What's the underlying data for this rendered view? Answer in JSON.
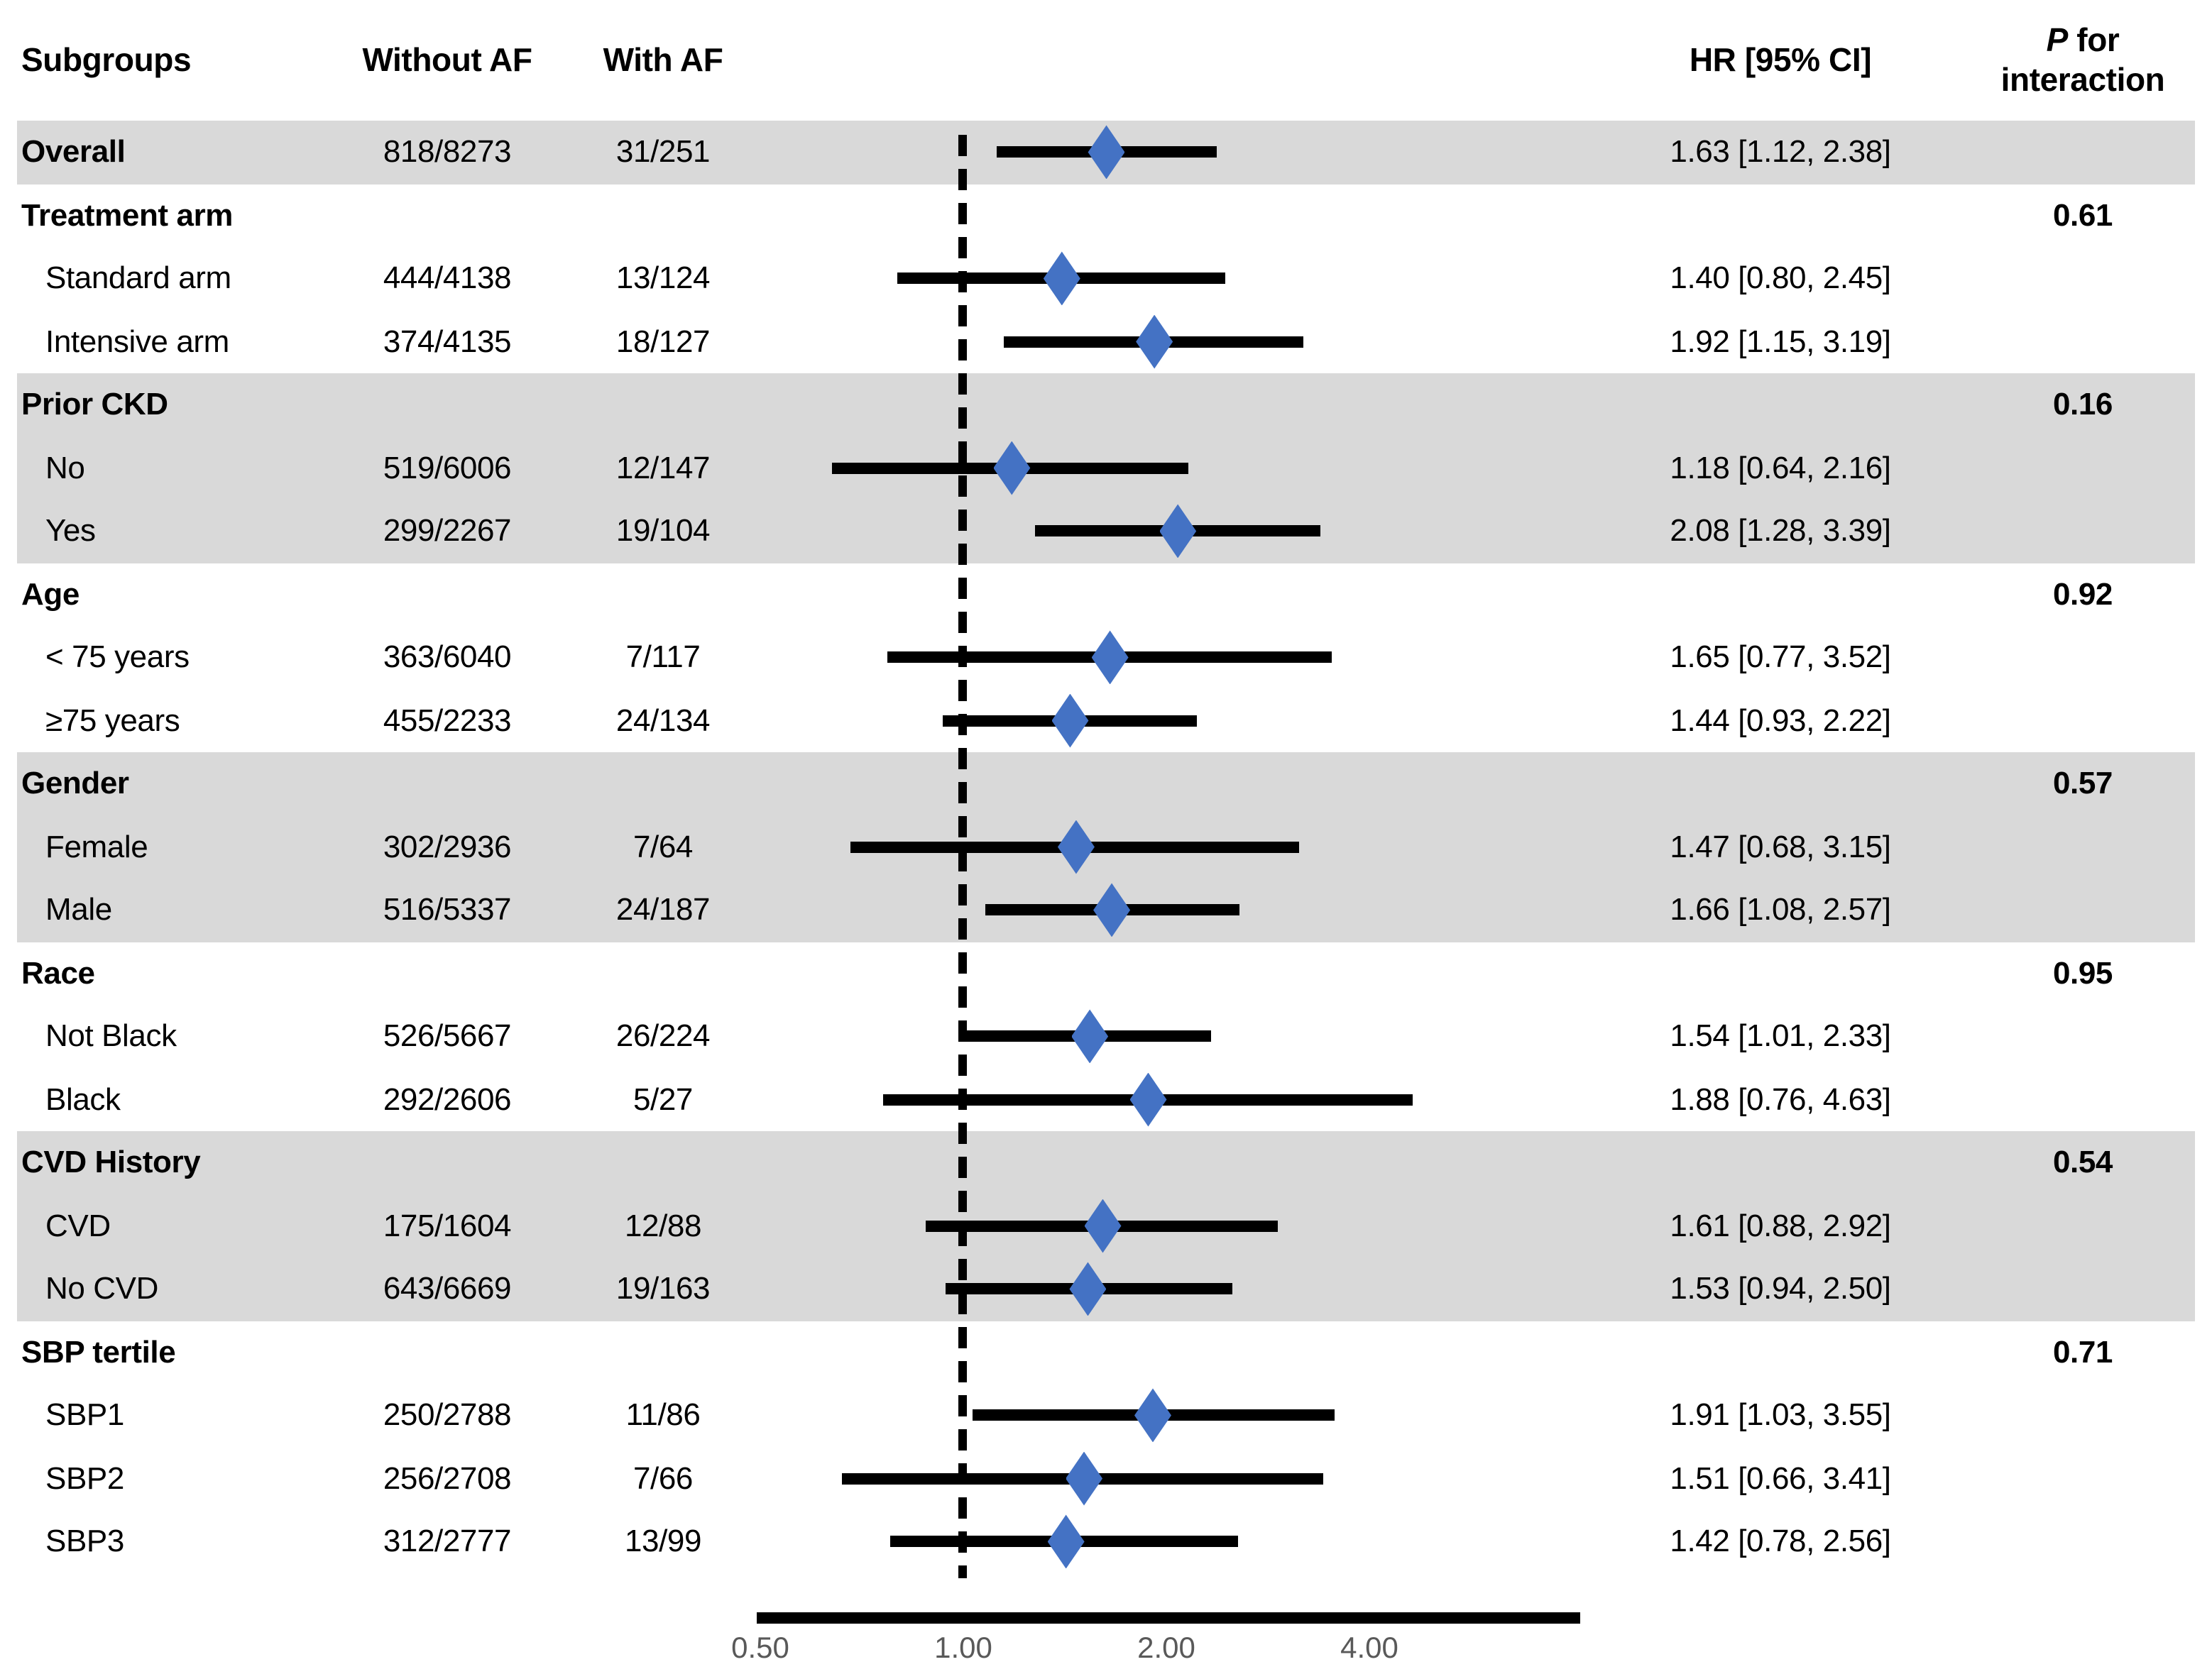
{
  "figure": {
    "header": {
      "subgroups": "Subgroups",
      "without_af": "Without AF",
      "with_af": "With AF",
      "hr_ci": "HR [95% CI]",
      "p_italic": "P",
      "p_rest": " for",
      "p_line2": "interaction"
    },
    "colors": {
      "diamond": "#4472C4",
      "band": "#D9D9D9",
      "ci_line": "#000000",
      "axis_label": "#595959"
    }
  },
  "chart_data": {
    "type": "forest",
    "title": "",
    "x_axis": {
      "scale": "log2",
      "ticks": [
        "0.50",
        "1.00",
        "2.00",
        "4.00"
      ],
      "tick_values": [
        0.5,
        1.0,
        2.0,
        4.0
      ],
      "reference_line": 1.0,
      "range": [
        0.5,
        8.0
      ]
    },
    "rows": [
      {
        "label": "Overall",
        "style": "section",
        "shaded": true,
        "without_af": "818/8273",
        "with_af": "31/251",
        "hr": 1.63,
        "ci_low": 1.12,
        "ci_high": 2.38,
        "hr_text": "1.63 [1.12, 2.38]",
        "p": ""
      },
      {
        "label": "Treatment arm",
        "style": "section",
        "shaded": false,
        "p": "0.61"
      },
      {
        "label": "Standard arm",
        "style": "item",
        "shaded": false,
        "without_af": "444/4138",
        "with_af": "13/124",
        "hr": 1.4,
        "ci_low": 0.8,
        "ci_high": 2.45,
        "hr_text": "1.40 [0.80, 2.45]",
        "p": ""
      },
      {
        "label": "Intensive arm",
        "style": "item",
        "shaded": false,
        "without_af": "374/4135",
        "with_af": "18/127",
        "hr": 1.92,
        "ci_low": 1.15,
        "ci_high": 3.19,
        "hr_text": "1.92 [1.15, 3.19]",
        "p": ""
      },
      {
        "label": "Prior CKD",
        "style": "section",
        "shaded": true,
        "p": "0.16"
      },
      {
        "label": "No",
        "style": "item",
        "shaded": true,
        "without_af": "519/6006",
        "with_af": "12/147",
        "hr": 1.18,
        "ci_low": 0.64,
        "ci_high": 2.16,
        "hr_text": "1.18 [0.64, 2.16]",
        "p": ""
      },
      {
        "label": "Yes",
        "style": "item",
        "shaded": true,
        "without_af": "299/2267",
        "with_af": "19/104",
        "hr": 2.08,
        "ci_low": 1.28,
        "ci_high": 3.39,
        "hr_text": "2.08 [1.28, 3.39]",
        "p": ""
      },
      {
        "label": "Age",
        "style": "section",
        "shaded": false,
        "p": "0.92"
      },
      {
        "label": "< 75 years",
        "style": "item",
        "shaded": false,
        "without_af": "363/6040",
        "with_af": "7/117",
        "hr": 1.65,
        "ci_low": 0.77,
        "ci_high": 3.52,
        "hr_text": "1.65 [0.77, 3.52]",
        "p": ""
      },
      {
        "label": "≥75 years",
        "style": "item",
        "shaded": false,
        "without_af": "455/2233",
        "with_af": "24/134",
        "hr": 1.44,
        "ci_low": 0.93,
        "ci_high": 2.22,
        "hr_text": "1.44 [0.93, 2.22]",
        "p": ""
      },
      {
        "label": "Gender",
        "style": "section",
        "shaded": true,
        "p": "0.57"
      },
      {
        "label": "Female",
        "style": "item",
        "shaded": true,
        "without_af": "302/2936",
        "with_af": "7/64",
        "hr": 1.47,
        "ci_low": 0.68,
        "ci_high": 3.15,
        "hr_text": "1.47 [0.68, 3.15]",
        "p": ""
      },
      {
        "label": "Male",
        "style": "item",
        "shaded": true,
        "without_af": "516/5337",
        "with_af": "24/187",
        "hr": 1.66,
        "ci_low": 1.08,
        "ci_high": 2.57,
        "hr_text": "1.66 [1.08, 2.57]",
        "p": ""
      },
      {
        "label": "Race",
        "style": "section",
        "shaded": false,
        "p": "0.95"
      },
      {
        "label": "Not Black",
        "style": "item",
        "shaded": false,
        "without_af": "526/5667",
        "with_af": "26/224",
        "hr": 1.54,
        "ci_low": 1.01,
        "ci_high": 2.33,
        "hr_text": "1.54 [1.01, 2.33]",
        "p": ""
      },
      {
        "label": "Black",
        "style": "item",
        "shaded": false,
        "without_af": "292/2606",
        "with_af": "5/27",
        "hr": 1.88,
        "ci_low": 0.76,
        "ci_high": 4.63,
        "hr_text": "1.88 [0.76, 4.63]",
        "p": ""
      },
      {
        "label": "CVD History",
        "style": "section",
        "shaded": true,
        "p": "0.54"
      },
      {
        "label": "CVD",
        "style": "item",
        "shaded": true,
        "without_af": "175/1604",
        "with_af": "12/88",
        "hr": 1.61,
        "ci_low": 0.88,
        "ci_high": 2.92,
        "hr_text": "1.61 [0.88, 2.92]",
        "p": ""
      },
      {
        "label": "No CVD",
        "style": "item",
        "shaded": true,
        "without_af": "643/6669",
        "with_af": "19/163",
        "hr": 1.53,
        "ci_low": 0.94,
        "ci_high": 2.5,
        "hr_text": "1.53 [0.94, 2.50]",
        "p": ""
      },
      {
        "label": "SBP tertile",
        "style": "section",
        "shaded": false,
        "p": "0.71"
      },
      {
        "label": "SBP1",
        "style": "item",
        "shaded": false,
        "without_af": "250/2788",
        "with_af": "11/86",
        "hr": 1.91,
        "ci_low": 1.03,
        "ci_high": 3.55,
        "hr_text": "1.91 [1.03, 3.55]",
        "p": ""
      },
      {
        "label": "SBP2",
        "style": "item",
        "shaded": false,
        "without_af": "256/2708",
        "with_af": "7/66",
        "hr": 1.51,
        "ci_low": 0.66,
        "ci_high": 3.41,
        "hr_text": "1.51 [0.66, 3.41]",
        "p": ""
      },
      {
        "label": "SBP3",
        "style": "item",
        "shaded": false,
        "without_af": "312/2777",
        "with_af": "13/99",
        "hr": 1.42,
        "ci_low": 0.78,
        "ci_high": 2.56,
        "hr_text": "1.42 [0.78, 2.56]",
        "p": ""
      }
    ]
  }
}
